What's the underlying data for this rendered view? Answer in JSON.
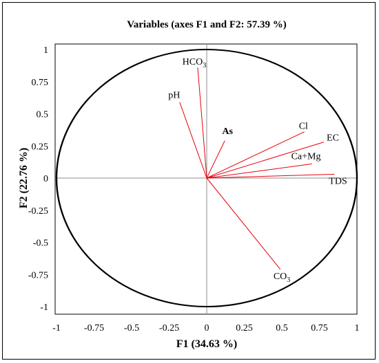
{
  "chart_data": {
    "type": "scatter",
    "title": "Variables (axes F1 and F2: 57.39 %)",
    "xlabel": "F1 (34.63 %)",
    "ylabel": "F2 (22.76 %)",
    "xlim": [
      -1,
      1
    ],
    "ylim": [
      -1,
      1
    ],
    "x_ticks": [
      "-1",
      "-0.75",
      "-0.5",
      "-0.25",
      "0",
      "0.25",
      "0.5",
      "0.75",
      "1"
    ],
    "y_ticks": [
      "1",
      "0.75",
      "0.5",
      "0.25",
      "0",
      "-0.25",
      "-0.5",
      "-0.75",
      "-1"
    ],
    "correlation_circle": true,
    "vector_color": "#e8000b",
    "variables": [
      {
        "name": "HCO",
        "sub": "3",
        "x": -0.06,
        "y": 0.86,
        "color": "#000000",
        "bold": false
      },
      {
        "name": "pH",
        "x": -0.18,
        "y": 0.59,
        "color": "#000000",
        "bold": false
      },
      {
        "name": "As",
        "x": 0.12,
        "y": 0.29,
        "color": "#e8000b",
        "bold": true
      },
      {
        "name": "Cl",
        "x": 0.65,
        "y": 0.36,
        "color": "#000000",
        "bold": false
      },
      {
        "name": "EC",
        "x": 0.78,
        "y": 0.28,
        "color": "#000000",
        "bold": false
      },
      {
        "name": "Ca+Mg",
        "x": 0.7,
        "y": 0.11,
        "color": "#000000",
        "bold": false
      },
      {
        "name": "TDS",
        "x": 0.85,
        "y": 0.03,
        "color": "#000000",
        "bold": false
      },
      {
        "name": "CO",
        "sub": "3",
        "x": 0.49,
        "y": -0.71,
        "color": "#000000",
        "bold": false
      }
    ]
  }
}
